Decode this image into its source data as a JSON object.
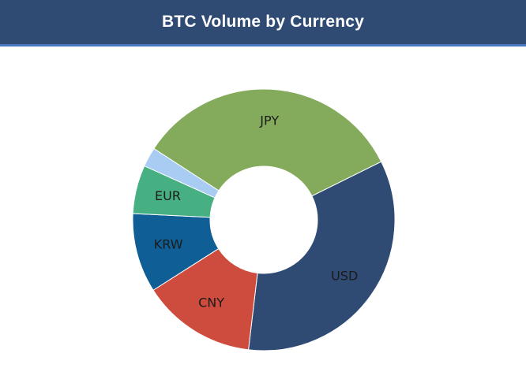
{
  "header": {
    "title": "BTC Volume by Currency"
  },
  "colors": {
    "header_bg": "#2f4b74",
    "header_border": "#4a78c0"
  },
  "chart_data": {
    "type": "pie",
    "title": "BTC Volume by Currency",
    "donut": true,
    "start_angle_deg_from_12_oclock": -57,
    "direction": "clockwise",
    "slices": [
      {
        "label": "JPY",
        "value": 33.5,
        "color": "#84ab5b",
        "show_label": true
      },
      {
        "label": "USD",
        "value": 34.2,
        "color": "#2f4b74",
        "show_label": true
      },
      {
        "label": "CNY",
        "value": 14.1,
        "color": "#cd4c3d",
        "show_label": true
      },
      {
        "label": "KRW",
        "value": 9.8,
        "color": "#0f5f96",
        "show_label": true
      },
      {
        "label": "EUR",
        "value": 6.0,
        "color": "#47b082",
        "show_label": true
      },
      {
        "label": "",
        "value": 2.4,
        "color": "#a8ccf2",
        "show_label": false
      }
    ]
  }
}
